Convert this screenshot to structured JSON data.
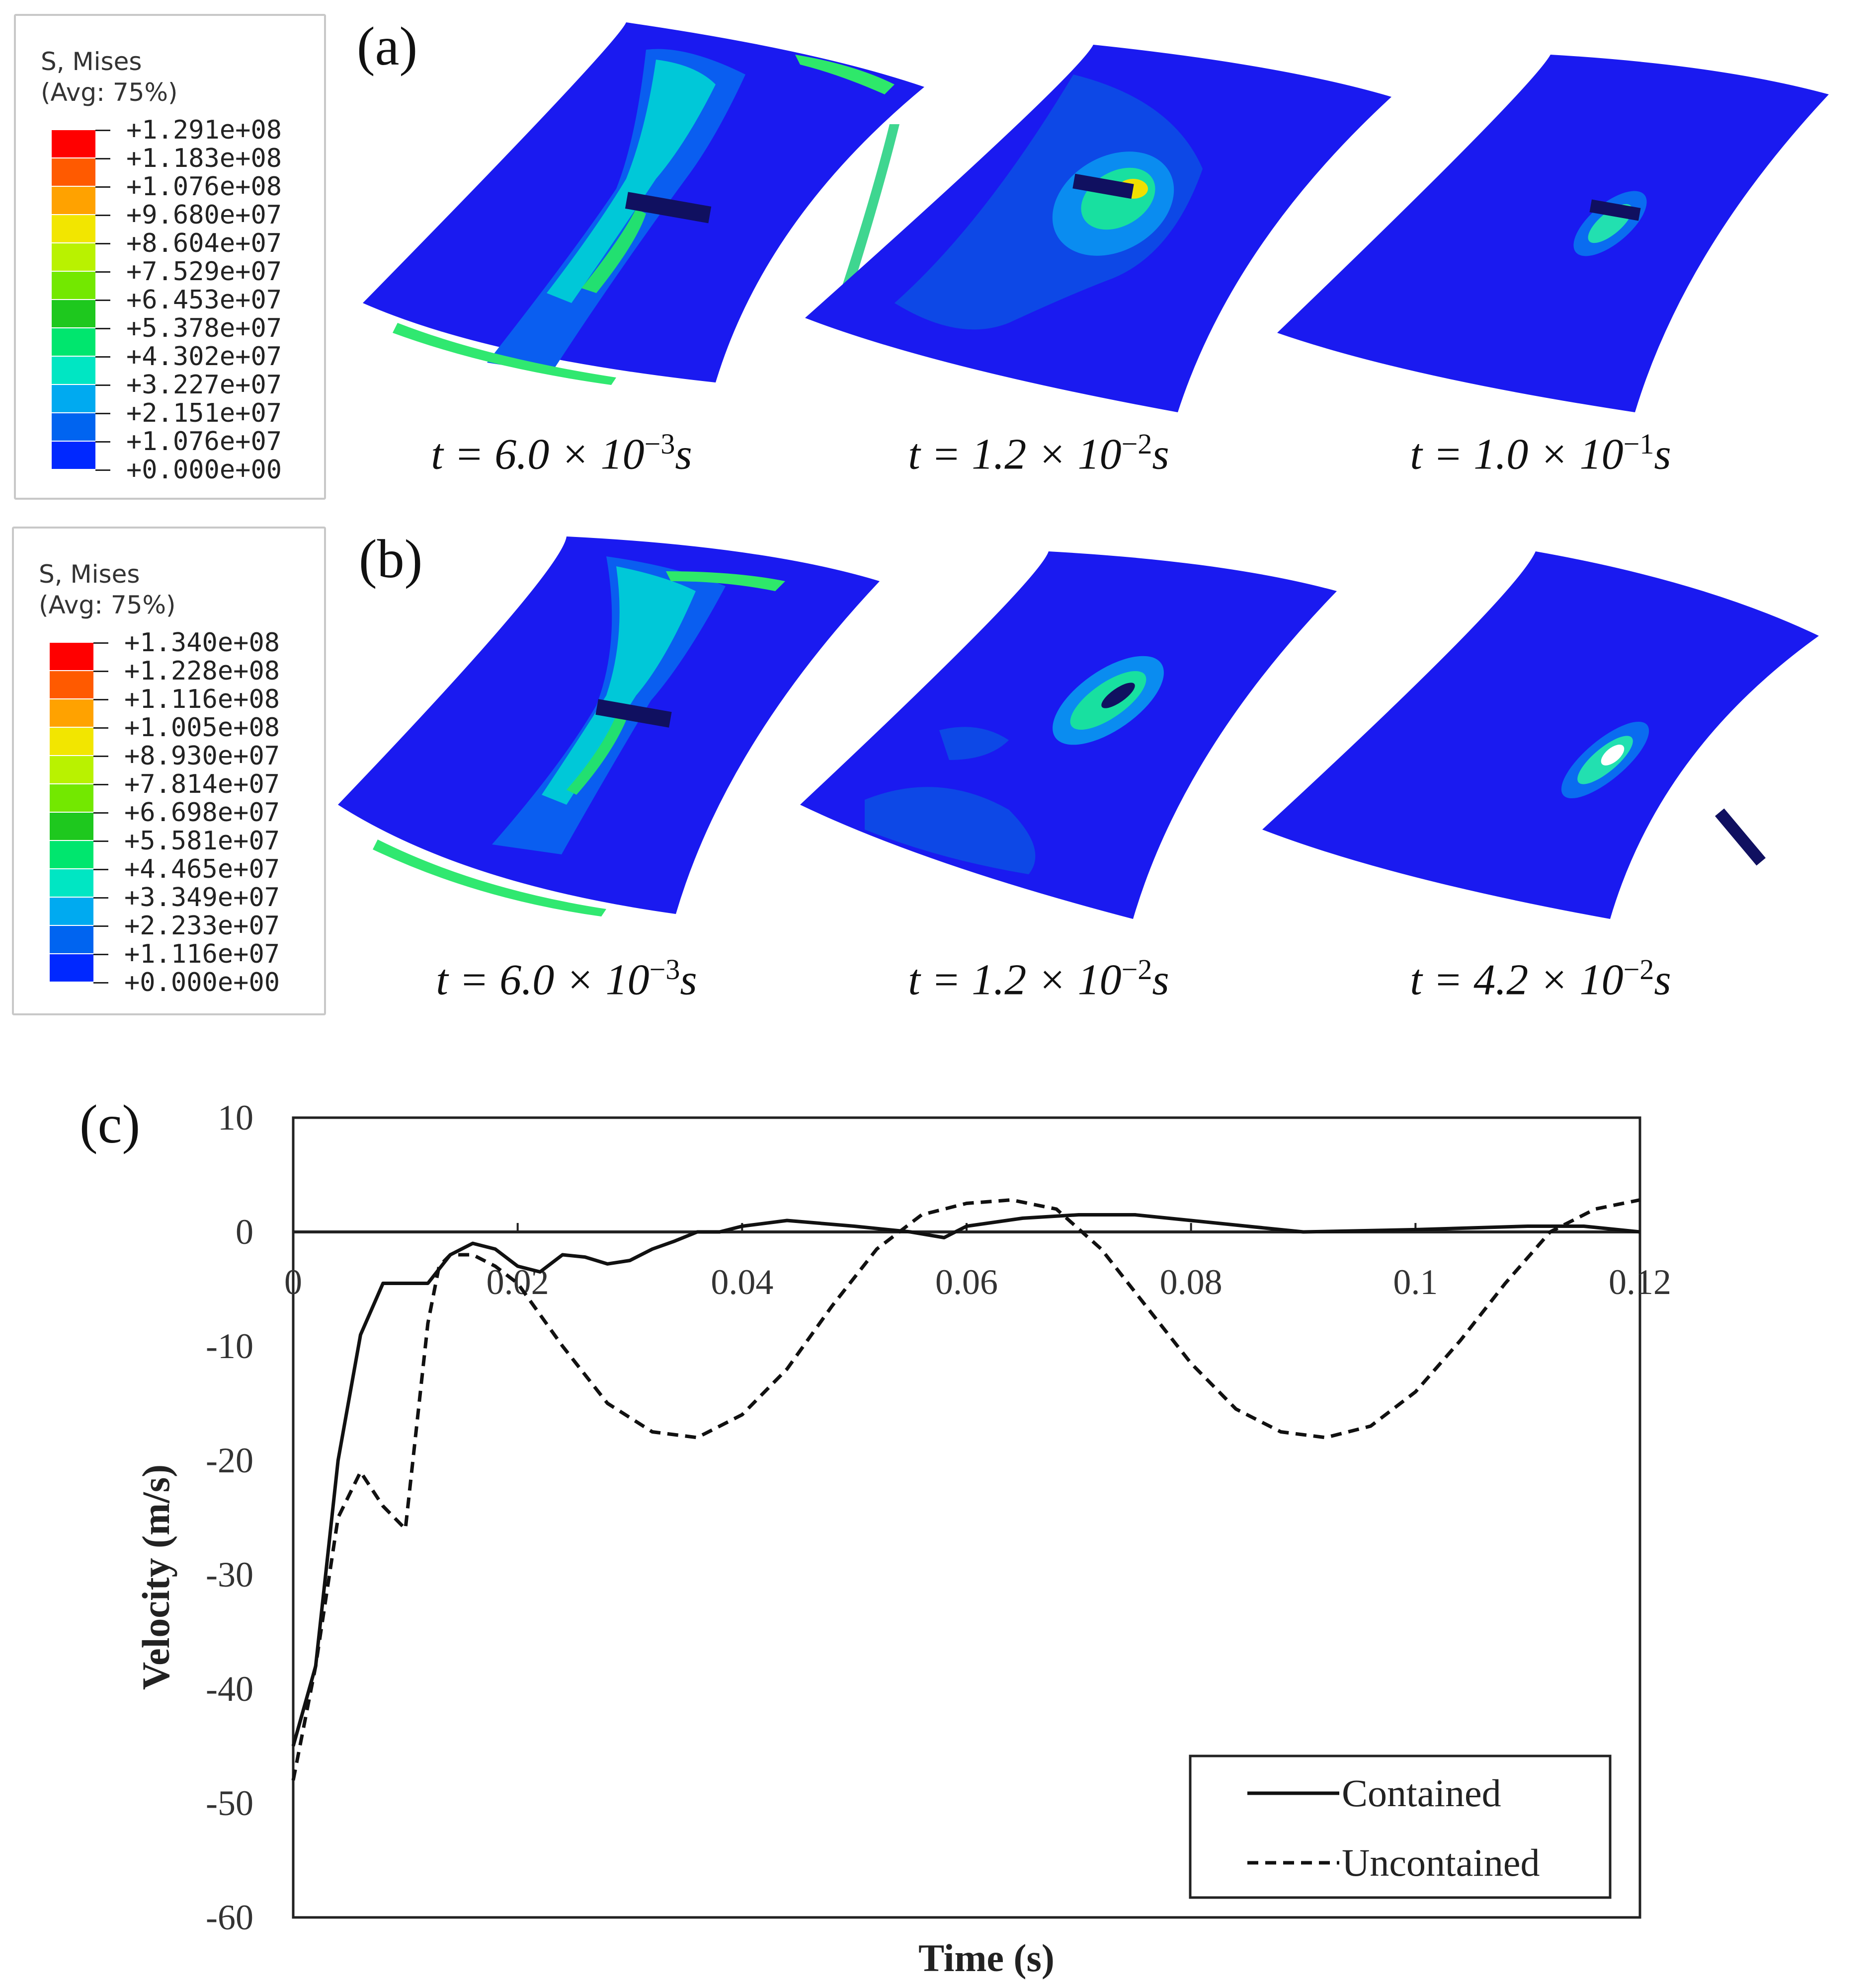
{
  "panel_a": {
    "label": "(a)",
    "legend": {
      "title_line1": "S, Mises",
      "title_line2": "(Avg: 75%)",
      "values": [
        "+1.291e+08",
        "+1.183e+08",
        "+1.076e+08",
        "+9.680e+07",
        "+8.604e+07",
        "+7.529e+07",
        "+6.453e+07",
        "+5.378e+07",
        "+4.302e+07",
        "+3.227e+07",
        "+2.151e+07",
        "+1.076e+07",
        "+0.000e+00"
      ]
    },
    "captions": [
      {
        "prefix": "t = 6.0 × 10",
        "exp": "−3",
        "suffix": "s"
      },
      {
        "prefix": "t = 1.2 × 10",
        "exp": "−2",
        "suffix": "s"
      },
      {
        "prefix": "t = 1.0 × 10",
        "exp": "−1",
        "suffix": "s"
      }
    ]
  },
  "panel_b": {
    "label": "(b)",
    "legend": {
      "title_line1": "S, Mises",
      "title_line2": "(Avg: 75%)",
      "values": [
        "+1.340e+08",
        "+1.228e+08",
        "+1.116e+08",
        "+1.005e+08",
        "+8.930e+07",
        "+7.814e+07",
        "+6.698e+07",
        "+5.581e+07",
        "+4.465e+07",
        "+3.349e+07",
        "+2.233e+07",
        "+1.116e+07",
        "+0.000e+00"
      ]
    },
    "captions": [
      {
        "prefix": "t = 6.0 × 10",
        "exp": "−3",
        "suffix": "s"
      },
      {
        "prefix": "t = 1.2 × 10",
        "exp": "−2",
        "suffix": "s"
      },
      {
        "prefix": "t = 4.2 × 10",
        "exp": "−2",
        "suffix": "s"
      }
    ]
  },
  "colormap": [
    "#ff0000",
    "#ff5a00",
    "#ffa200",
    "#f2e600",
    "#b9f200",
    "#73e800",
    "#1ec81e",
    "#00e66e",
    "#00e6c3",
    "#00aaf0",
    "#0064f0",
    "#0028ff"
  ],
  "chart_data": {
    "panel_label": "(c)",
    "type": "line",
    "xlabel": "Time (s)",
    "ylabel": "Velocity (m/s)",
    "xlim": [
      0,
      0.12
    ],
    "ylim": [
      -60,
      10
    ],
    "x_ticks": [
      0,
      0.02,
      0.04,
      0.06,
      0.08,
      0.1,
      0.12
    ],
    "x_tick_labels": [
      "0",
      "0.02",
      "0.04",
      "0.06",
      "0.08",
      "0.1",
      "0.12"
    ],
    "y_ticks": [
      10,
      0,
      -10,
      -20,
      -30,
      -40,
      -50,
      -60
    ],
    "y_tick_labels": [
      "10",
      "0",
      "-10",
      "-20",
      "-30",
      "-40",
      "-50",
      "-60"
    ],
    "legend_position": "bottom-right",
    "series": [
      {
        "name": "Contained",
        "style": "solid",
        "x": [
          0,
          0.002,
          0.004,
          0.006,
          0.008,
          0.009,
          0.012,
          0.014,
          0.016,
          0.018,
          0.02,
          0.022,
          0.024,
          0.026,
          0.028,
          0.03,
          0.032,
          0.034,
          0.036,
          0.038,
          0.04,
          0.044,
          0.05,
          0.055,
          0.058,
          0.06,
          0.065,
          0.07,
          0.075,
          0.08,
          0.085,
          0.09,
          0.1,
          0.11,
          0.115,
          0.12
        ],
        "y": [
          -45,
          -38,
          -20,
          -9,
          -4.5,
          -4.5,
          -4.5,
          -2,
          -1,
          -1.5,
          -3,
          -3.5,
          -2,
          -2.2,
          -2.8,
          -2.5,
          -1.5,
          -0.8,
          0,
          0,
          0.5,
          1,
          0.5,
          0,
          -0.5,
          0.5,
          1.2,
          1.5,
          1.5,
          1,
          0.5,
          0,
          0.2,
          0.5,
          0.5,
          0
        ]
      },
      {
        "name": "Uncontained",
        "style": "dashed",
        "x": [
          0,
          0.002,
          0.004,
          0.006,
          0.008,
          0.01,
          0.012,
          0.013,
          0.014,
          0.016,
          0.018,
          0.02,
          0.024,
          0.028,
          0.032,
          0.036,
          0.04,
          0.044,
          0.048,
          0.052,
          0.056,
          0.06,
          0.064,
          0.068,
          0.072,
          0.076,
          0.08,
          0.084,
          0.088,
          0.092,
          0.096,
          0.1,
          0.104,
          0.108,
          0.112,
          0.116,
          0.12
        ],
        "y": [
          -48,
          -38,
          -25,
          -21,
          -24,
          -26,
          -8,
          -3,
          -2,
          -2,
          -3,
          -4.5,
          -10,
          -15,
          -17.5,
          -18,
          -16,
          -12,
          -6.5,
          -1.5,
          1.5,
          2.5,
          2.8,
          2,
          -1.5,
          -6.5,
          -11.5,
          -15.5,
          -17.5,
          -18,
          -17,
          -14,
          -9.5,
          -4.5,
          0,
          2,
          2.8
        ]
      }
    ]
  }
}
